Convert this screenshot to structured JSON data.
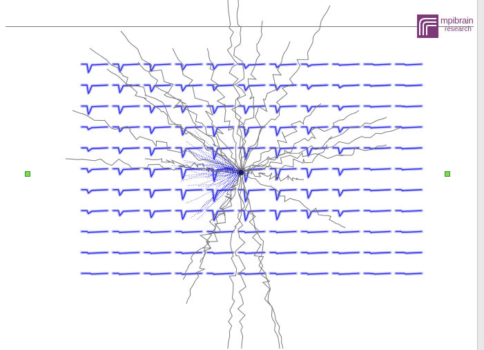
{
  "logo": {
    "line1": "mpibrain",
    "line2": "research",
    "color": "#7d3a78"
  },
  "grid": {
    "rows": 11,
    "cols": 11,
    "trace_color": "#2424d8",
    "glow_color": "#a8a8ff"
  },
  "neuron": {
    "dendrite_color": "#777777",
    "axon_color": "#1a1ad0"
  },
  "handles": {
    "color": "#7ed957",
    "left_name": "left-resize-handle",
    "right_name": "right-resize-handle"
  }
}
